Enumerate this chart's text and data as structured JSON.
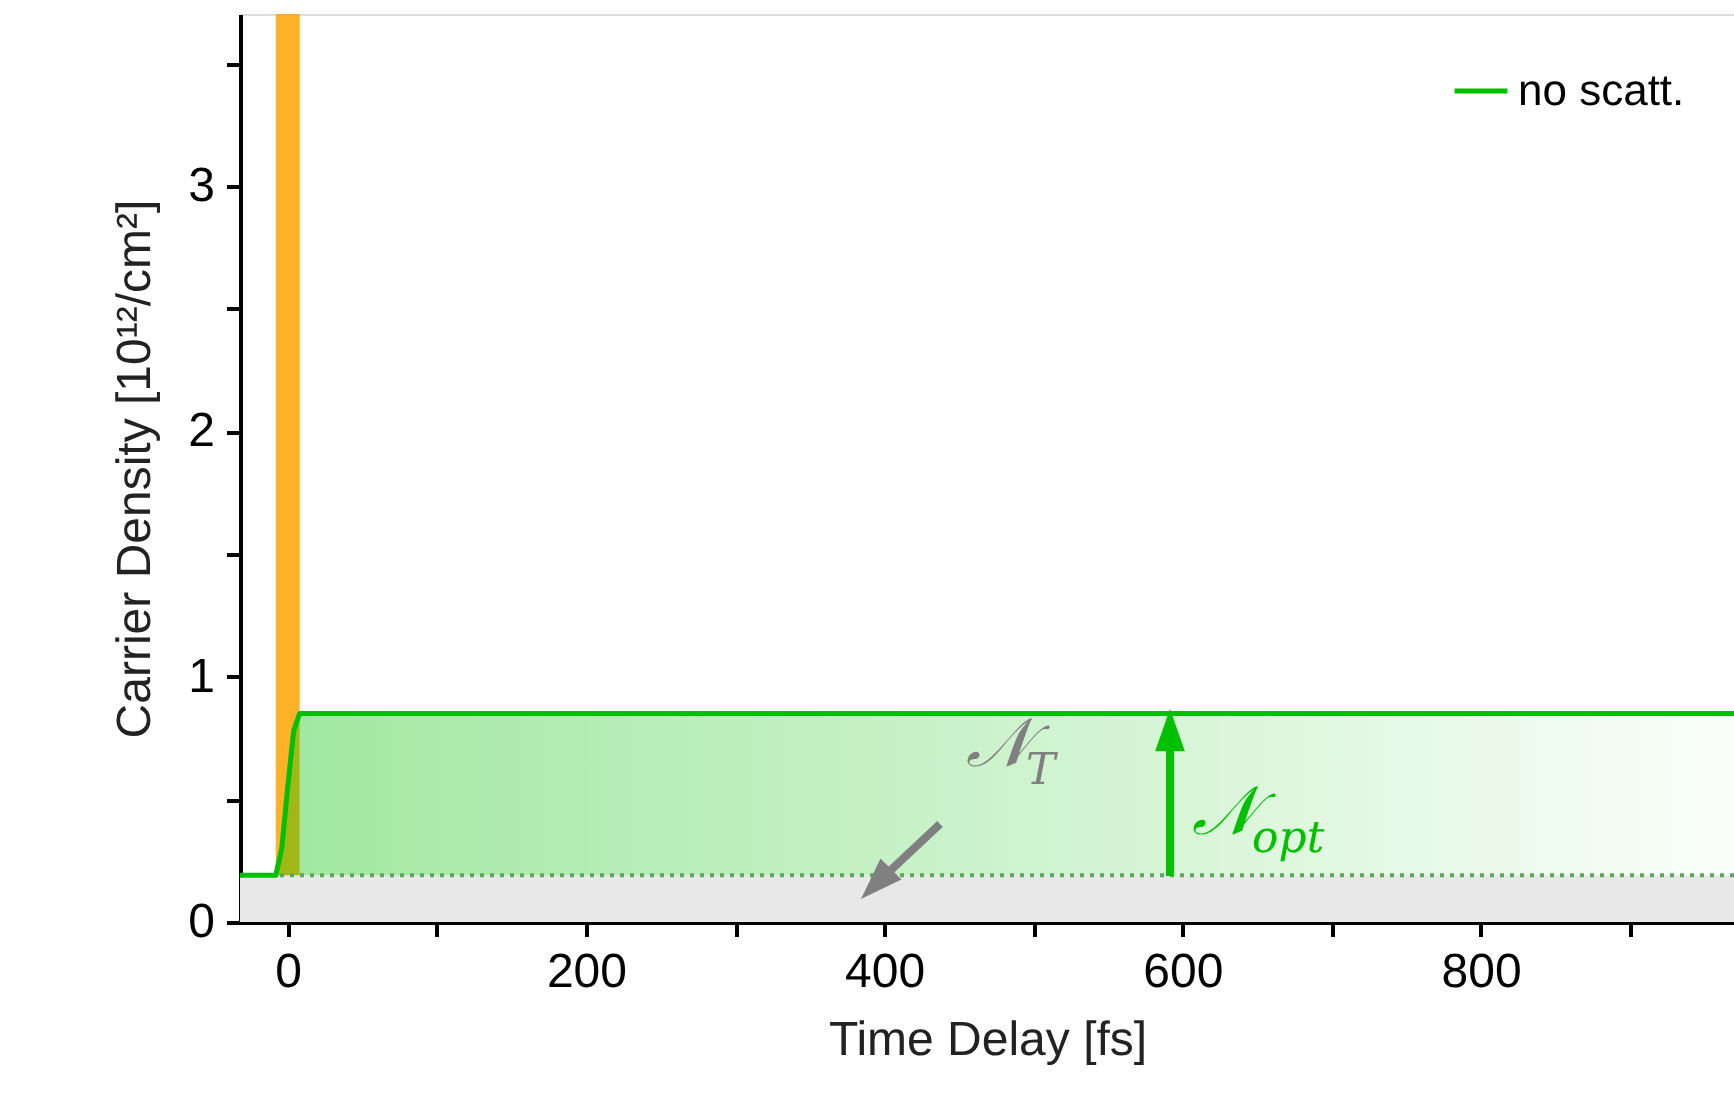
{
  "chart_data": {
    "type": "line",
    "xlabel": "Time Delay [fs]",
    "ylabel": "Carrier Density [10¹²/cm²]",
    "series": [
      {
        "name": "no scatt.",
        "color": "#00c000",
        "x": [
          -32,
          -8,
          -4,
          0,
          4,
          8,
          970
        ],
        "values": [
          0.19,
          0.19,
          0.3,
          0.55,
          0.78,
          0.85,
          0.85
        ],
        "lower": [
          0.19,
          0.19,
          0.19,
          0.19,
          0.19,
          0.19,
          0.19
        ],
        "upper": [
          0.19,
          0.19,
          0.3,
          0.55,
          0.78,
          0.85,
          0.85
        ]
      }
    ],
    "xlim": [
      -32,
      970
    ],
    "ylim": [
      0,
      3.7
    ],
    "xticks": [
      0,
      {
        "value": 100,
        "label": null
      },
      200,
      {
        "value": 300,
        "label": null
      },
      400,
      {
        "value": 500,
        "label": null
      },
      600,
      {
        "value": 700,
        "label": null
      },
      800,
      {
        "value": 900,
        "label": null
      }
    ],
    "yticks": [
      0,
      {
        "value": 0.5,
        "label": null
      },
      1,
      {
        "value": 1.5,
        "label": null
      },
      2,
      {
        "value": 2.5,
        "label": null
      },
      3,
      {
        "value": 3.5,
        "label": null
      }
    ],
    "bands": [
      {
        "axis": "x",
        "from": -8,
        "to": 8,
        "color": "#ffa500"
      },
      {
        "axis": "y",
        "from": 0,
        "to": 0.19,
        "color": "#e8e8e8"
      }
    ],
    "ref_lines": [
      {
        "axis": "y",
        "value": 0.19,
        "color": "#5aa85a",
        "line_style": "dotted"
      }
    ],
    "annotations": [
      "𝒩$_{T}$",
      "𝒩$_{opt}$"
    ],
    "legend": "top right",
    "grid": false
  }
}
